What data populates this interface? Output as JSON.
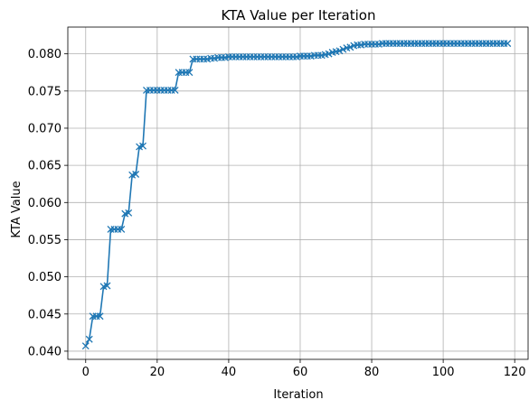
{
  "chart_data": {
    "type": "line",
    "title": "KTA Value per Iteration",
    "xlabel": "Iteration",
    "ylabel": "KTA Value",
    "xlim": [
      -5,
      124
    ],
    "ylim": [
      0.0389,
      0.0836
    ],
    "xticks": [
      0,
      20,
      40,
      60,
      80,
      100,
      120
    ],
    "yticks": [
      0.04,
      0.045,
      0.05,
      0.055,
      0.06,
      0.065,
      0.07,
      0.075,
      0.08
    ],
    "xtick_labels": [
      "0",
      "20",
      "40",
      "60",
      "80",
      "100",
      "120"
    ],
    "ytick_labels": [
      "0.040",
      "0.045",
      "0.050",
      "0.055",
      "0.060",
      "0.065",
      "0.070",
      "0.075",
      "0.080"
    ],
    "grid": true,
    "marker": "x",
    "line_color": "#1f77b4",
    "series": [
      {
        "x": [
          0,
          1,
          2,
          3,
          4,
          5,
          6,
          7,
          8,
          9,
          10,
          11,
          12,
          13,
          14,
          15,
          16,
          17,
          18,
          19,
          20,
          21,
          22,
          23,
          24,
          25,
          26,
          27,
          28,
          29,
          30,
          31,
          32,
          33,
          34,
          35,
          36,
          37,
          38,
          39,
          40,
          41,
          42,
          43,
          44,
          45,
          46,
          47,
          48,
          49,
          50,
          51,
          52,
          53,
          54,
          55,
          56,
          57,
          58,
          59,
          60,
          61,
          62,
          63,
          64,
          65,
          66,
          67,
          68,
          69,
          70,
          71,
          72,
          73,
          74,
          75,
          76,
          77,
          78,
          79,
          80,
          81,
          82,
          83,
          84,
          85,
          86,
          87,
          88,
          89,
          90,
          91,
          92,
          93,
          94,
          95,
          96,
          97,
          98,
          99,
          100,
          101,
          102,
          103,
          104,
          105,
          106,
          107,
          108,
          109,
          110,
          111,
          112,
          113,
          114,
          115,
          116,
          117,
          118
        ],
        "y": [
          0.0407,
          0.0416,
          0.0447,
          0.0447,
          0.0447,
          0.0487,
          0.0488,
          0.0564,
          0.0564,
          0.0564,
          0.0564,
          0.0585,
          0.0586,
          0.0637,
          0.0638,
          0.0675,
          0.0676,
          0.0751,
          0.0751,
          0.0751,
          0.0751,
          0.0751,
          0.0751,
          0.0751,
          0.0751,
          0.0751,
          0.0775,
          0.0775,
          0.0775,
          0.0775,
          0.0793,
          0.0793,
          0.0793,
          0.0793,
          0.0793,
          0.0794,
          0.0794,
          0.0795,
          0.0795,
          0.0795,
          0.0796,
          0.0796,
          0.0796,
          0.0796,
          0.0796,
          0.0796,
          0.0796,
          0.0796,
          0.0796,
          0.0796,
          0.0796,
          0.0796,
          0.0796,
          0.0796,
          0.0796,
          0.0796,
          0.0796,
          0.0796,
          0.0796,
          0.0796,
          0.0797,
          0.0797,
          0.0797,
          0.0797,
          0.0798,
          0.0798,
          0.0798,
          0.0799,
          0.08,
          0.0802,
          0.0803,
          0.0804,
          0.0806,
          0.0808,
          0.0809,
          0.0811,
          0.0812,
          0.0812,
          0.0813,
          0.0813,
          0.0813,
          0.0813,
          0.0813,
          0.0814,
          0.0814,
          0.0814,
          0.0814,
          0.0814,
          0.0814,
          0.0814,
          0.0814,
          0.0814,
          0.0814,
          0.0814,
          0.0814,
          0.0814,
          0.0814,
          0.0814,
          0.0814,
          0.0814,
          0.0814,
          0.0814,
          0.0814,
          0.0814,
          0.0814,
          0.0814,
          0.0814,
          0.0814,
          0.0814,
          0.0814,
          0.0814,
          0.0814,
          0.0814,
          0.0814,
          0.0814,
          0.0814,
          0.0814,
          0.0814,
          0.0814
        ]
      }
    ]
  }
}
